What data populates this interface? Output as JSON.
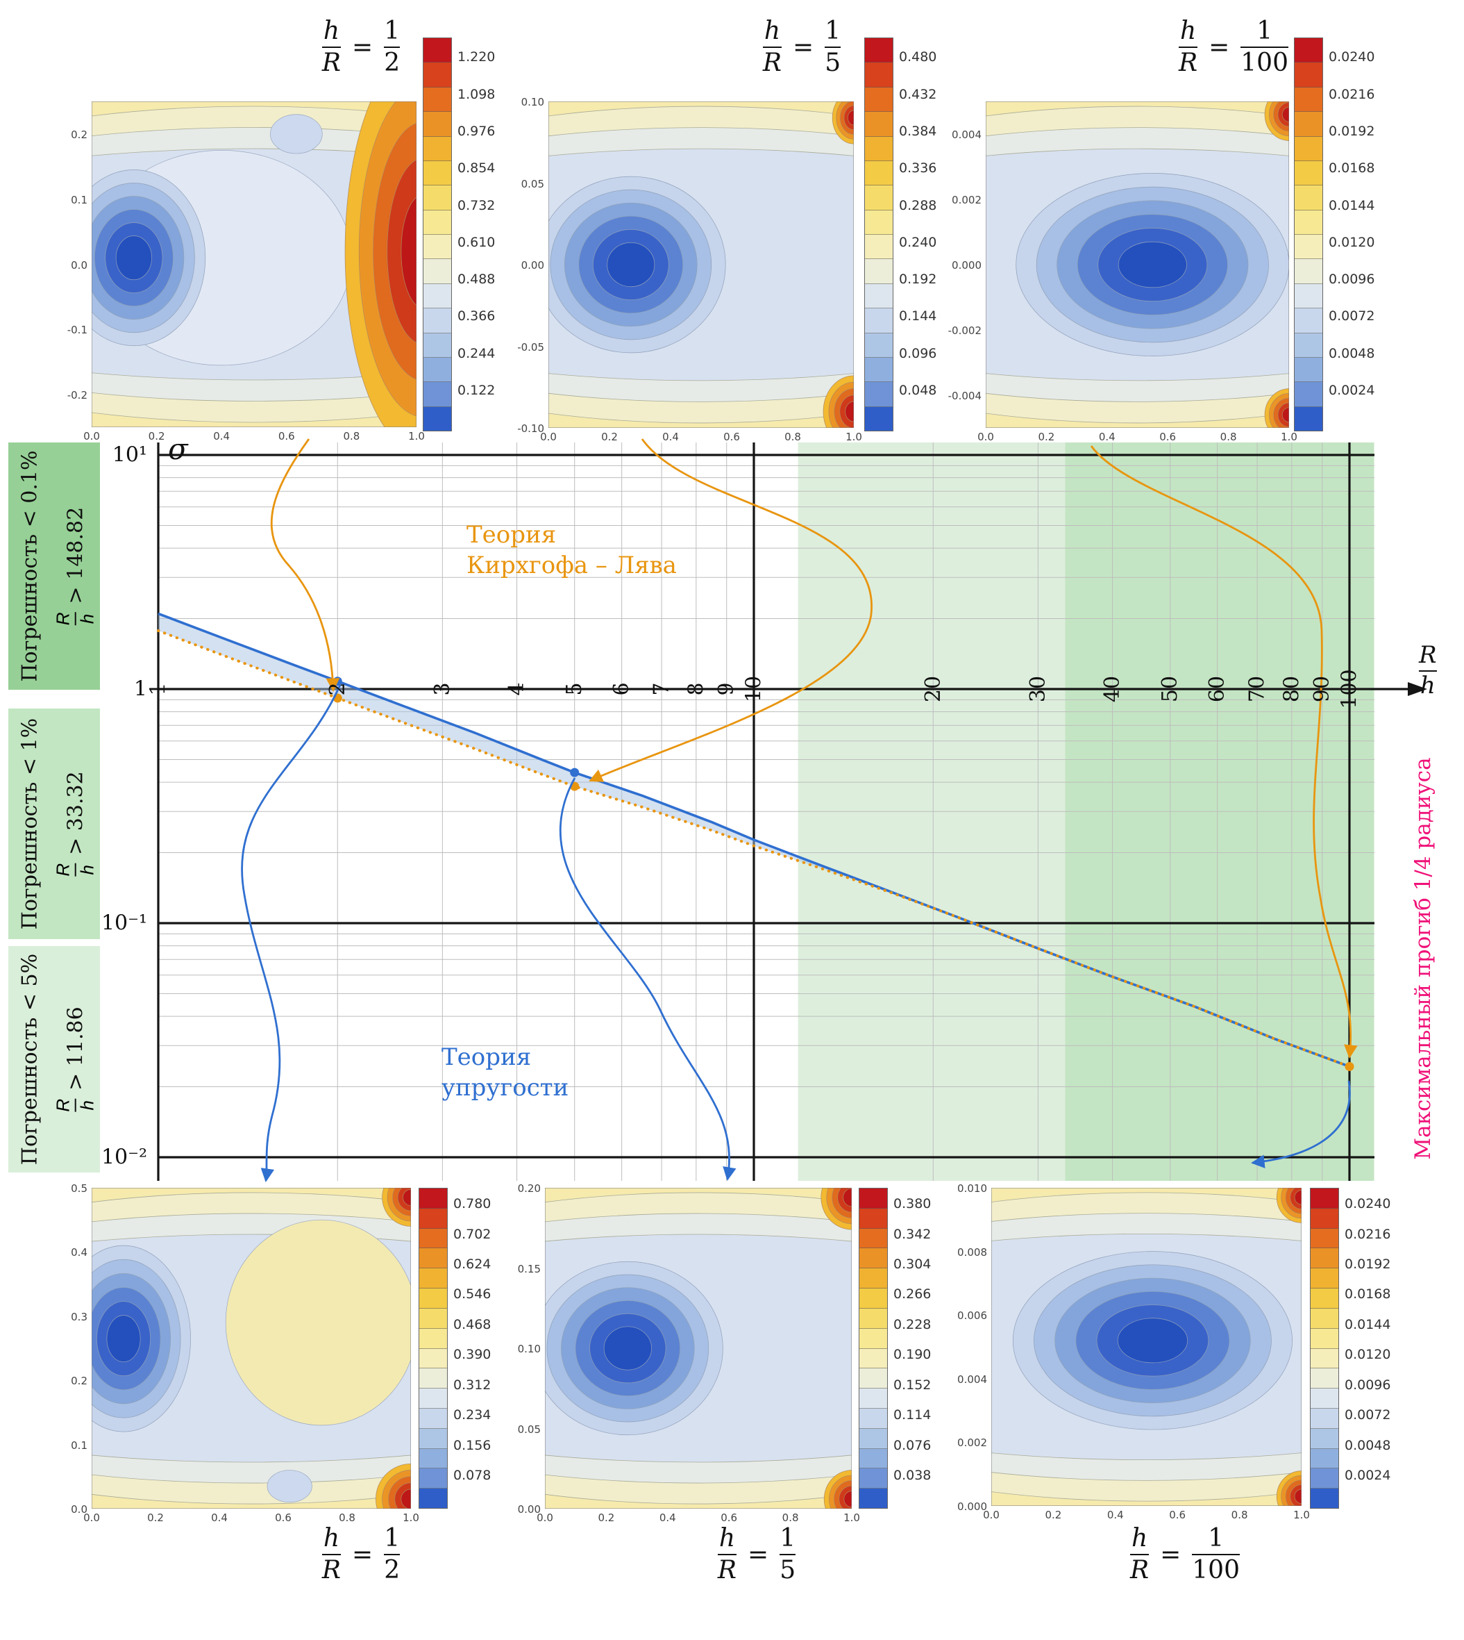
{
  "page": {
    "background": "#ffffff"
  },
  "chart_data": {
    "type": "line",
    "title": "",
    "main_plot": {
      "ylabel": "σ",
      "xlabel_num": "R",
      "xlabel_den": "h",
      "x_scale": "log",
      "y_scale": "log",
      "xlim": [
        1,
        100
      ],
      "ylim": [
        0.01,
        10
      ],
      "grid": true,
      "x_ticks": [
        "1",
        "2",
        "3",
        "4",
        "5",
        "6",
        "7",
        "8",
        "9",
        "10",
        "20",
        "30",
        "40",
        "50",
        "60",
        "70",
        "80",
        "90",
        "100"
      ],
      "y_ticks": [
        {
          "value": 10,
          "label": "10¹"
        },
        {
          "value": 1,
          "label": "1"
        },
        {
          "value": 0.1,
          "label": "10⁻¹"
        },
        {
          "value": 0.01,
          "label": "10⁻²"
        }
      ],
      "series": [
        {
          "name": "Теория упругости",
          "color": "#2f6fd0",
          "style": "solid",
          "x": [
            1,
            1.3,
            1.7,
            2,
            2.6,
            3.4,
            4.4,
            5,
            6.5,
            8.5,
            10,
            13,
            17,
            22,
            30,
            40,
            55,
            75,
            100
          ],
          "y": [
            2.1,
            1.63,
            1.26,
            1.08,
            0.84,
            0.65,
            0.5,
            0.44,
            0.35,
            0.27,
            0.227,
            0.176,
            0.136,
            0.106,
            0.078,
            0.059,
            0.044,
            0.032,
            0.0244
          ]
        },
        {
          "name": "Теория Кирхгофа – Лява",
          "color": "#e8950f",
          "style": "dotted",
          "x": [
            1,
            1.3,
            1.7,
            2,
            2.6,
            3.4,
            4.4,
            5,
            6.5,
            8.5,
            10,
            13,
            17,
            22,
            30,
            40,
            55,
            75,
            100
          ],
          "y": [
            1.775,
            1.378,
            1.066,
            0.915,
            0.714,
            0.556,
            0.433,
            0.384,
            0.313,
            0.249,
            0.214,
            0.171,
            0.135,
            0.106,
            0.078,
            0.059,
            0.044,
            0.032,
            0.0244
          ]
        }
      ],
      "markers": [
        {
          "color": "#2f6fd0",
          "points": [
            [
              2,
              1.08
            ],
            [
              5,
              0.44
            ]
          ]
        },
        {
          "color": "#e8950f",
          "points": [
            [
              2,
              0.915
            ],
            [
              5,
              0.384
            ],
            [
              100,
              0.0244
            ]
          ]
        }
      ],
      "regions": [
        {
          "x_start": 11.86,
          "x_end": 33.32,
          "color": "#ddeedd"
        },
        {
          "x_start": 33.32,
          "x_end": 110,
          "color": "#c4e5c3"
        }
      ]
    },
    "annotations": {
      "kirchhoff_line1": "Теория",
      "kirchhoff_line2": "Кирхгофа – Лява",
      "kirchhoff_color": "#e8950f",
      "elasticity_line1": "Теория",
      "elasticity_line2": "упругости",
      "elasticity_color": "#2f6fd0"
    },
    "right_label": {
      "text": "Максимальный прогиб 1/4 радиуса",
      "color": "#ef1178"
    },
    "error_labels": [
      {
        "text": "Погрешность < 0.1%",
        "frac_num": "R",
        "frac_den": "h",
        "cond": "> 148.82",
        "bg": "#96d096"
      },
      {
        "text": "Погрешность < 1%",
        "frac_num": "R",
        "frac_den": "h",
        "cond": "> 33.32",
        "bg": "#c2e6c2"
      },
      {
        "text": "Погрешность < 5%",
        "frac_num": "R",
        "frac_den": "h",
        "cond": "> 11.86",
        "bg": "#daefda"
      }
    ],
    "contour_plots": [
      {
        "position": "top-left",
        "title_num": "h",
        "title_den": "R",
        "eq": "=",
        "value_num": "1",
        "value_den": "2",
        "colorbar_ticks": [
          "1.220",
          "1.098",
          "0.976",
          "0.854",
          "0.732",
          "0.610",
          "0.488",
          "0.366",
          "0.244",
          "0.122"
        ],
        "x_ticks": [
          "0.0",
          "0.2",
          "0.4",
          "0.6",
          "0.8",
          "1.0"
        ],
        "y_ticks": [
          "0.2",
          "0.1",
          "0.0",
          "-0.1",
          "-0.2"
        ]
      },
      {
        "position": "top-middle",
        "title_num": "h",
        "title_den": "R",
        "eq": "=",
        "value_num": "1",
        "value_den": "5",
        "colorbar_ticks": [
          "0.480",
          "0.432",
          "0.384",
          "0.336",
          "0.288",
          "0.240",
          "0.192",
          "0.144",
          "0.096",
          "0.048"
        ],
        "x_ticks": [
          "0.0",
          "0.2",
          "0.4",
          "0.6",
          "0.8",
          "1.0"
        ],
        "y_ticks": [
          "0.10",
          "0.05",
          "0.00",
          "-0.05",
          "-0.10"
        ]
      },
      {
        "position": "top-right",
        "title_num": "h",
        "title_den": "R",
        "eq": "=",
        "value_num": "1",
        "value_den": "100",
        "colorbar_ticks": [
          "0.0240",
          "0.0216",
          "0.0192",
          "0.0168",
          "0.0144",
          "0.0120",
          "0.0096",
          "0.0072",
          "0.0048",
          "0.0024"
        ],
        "x_ticks": [
          "0.0",
          "0.2",
          "0.4",
          "0.6",
          "0.8",
          "1.0"
        ],
        "y_ticks": [
          "0.004",
          "0.002",
          "0.000",
          "-0.002",
          "-0.004"
        ]
      },
      {
        "position": "bottom-left",
        "title_num": "h",
        "title_den": "R",
        "eq": "=",
        "value_num": "1",
        "value_den": "2",
        "colorbar_ticks": [
          "0.780",
          "0.702",
          "0.624",
          "0.546",
          "0.468",
          "0.390",
          "0.312",
          "0.234",
          "0.156",
          "0.078"
        ],
        "x_ticks": [
          "0.0",
          "0.2",
          "0.4",
          "0.6",
          "0.8",
          "1.0"
        ],
        "y_ticks": [
          "0.5",
          "0.4",
          "0.3",
          "0.2",
          "0.1",
          "0.0"
        ]
      },
      {
        "position": "bottom-middle",
        "title_num": "h",
        "title_den": "R",
        "eq": "=",
        "value_num": "1",
        "value_den": "5",
        "colorbar_ticks": [
          "0.380",
          "0.342",
          "0.304",
          "0.266",
          "0.228",
          "0.190",
          "0.152",
          "0.114",
          "0.076",
          "0.038"
        ],
        "x_ticks": [
          "0.0",
          "0.2",
          "0.4",
          "0.6",
          "0.8",
          "1.0"
        ],
        "y_ticks": [
          "0.20",
          "0.15",
          "0.10",
          "0.05",
          "0.00"
        ]
      },
      {
        "position": "bottom-right",
        "title_num": "h",
        "title_den": "R",
        "eq": "=",
        "value_num": "1",
        "value_den": "100",
        "colorbar_ticks": [
          "0.0240",
          "0.0216",
          "0.0192",
          "0.0168",
          "0.0144",
          "0.0120",
          "0.0096",
          "0.0072",
          "0.0048",
          "0.0024"
        ],
        "x_ticks": [
          "0.0",
          "0.2",
          "0.4",
          "0.6",
          "0.8",
          "1.0"
        ],
        "y_ticks": [
          "0.010",
          "0.008",
          "0.006",
          "0.004",
          "0.002",
          "0.000"
        ]
      }
    ]
  }
}
